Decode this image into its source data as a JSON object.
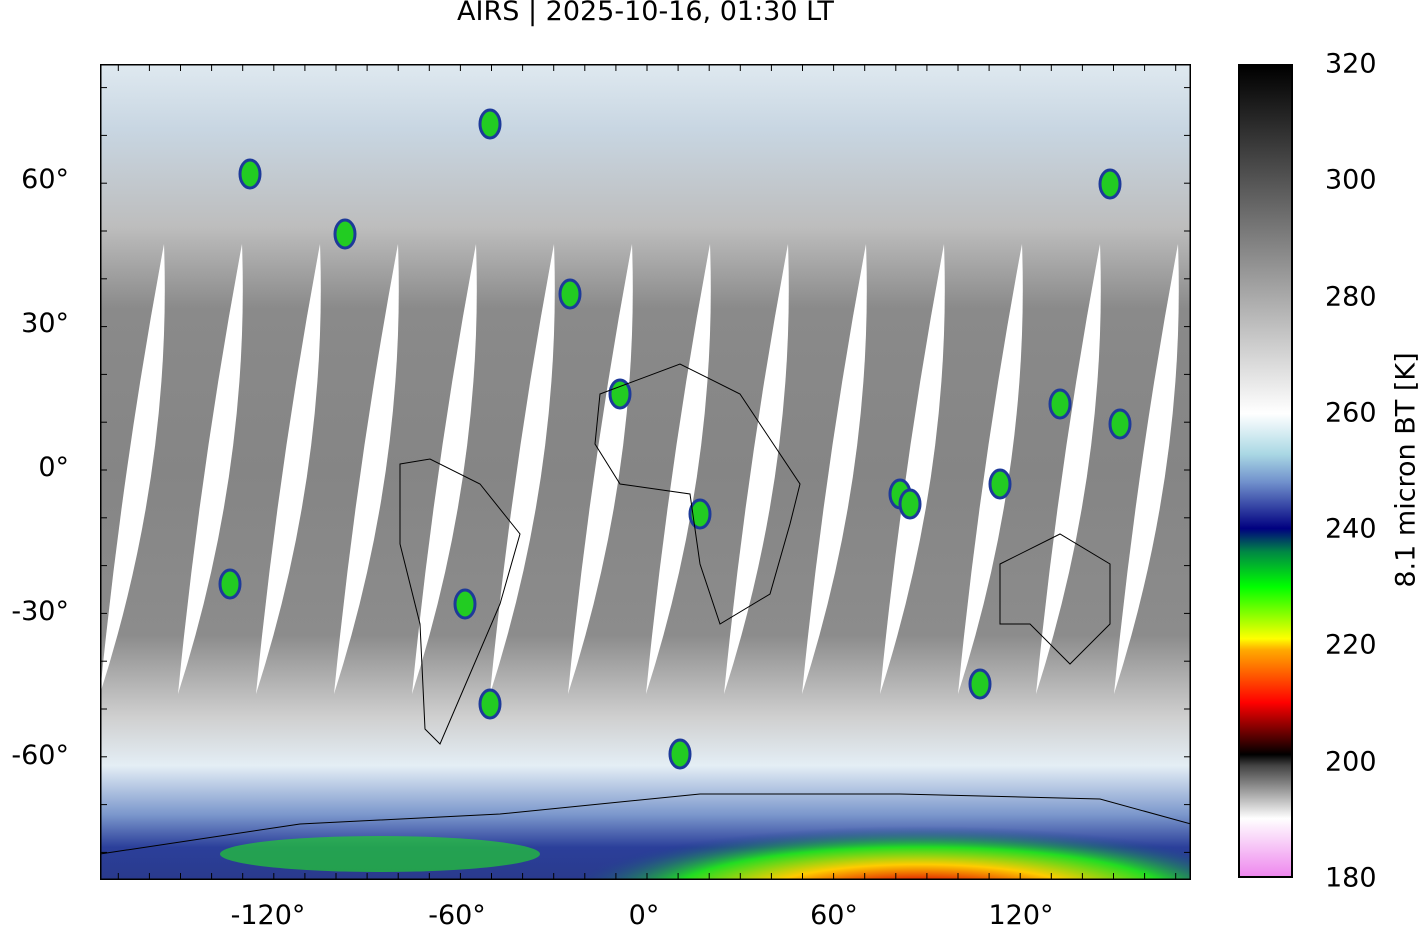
{
  "title": "AIRS | 2025-10-16, 01:30 LT",
  "map": {
    "projection": "equirectangular",
    "variable": "8.1 micron brightness temperature",
    "lat_ticks": [
      "60°",
      "30°",
      "0°",
      "-30°",
      "-60°"
    ],
    "lon_ticks": [
      "-120°",
      "-60°",
      "0°",
      "60°",
      "120°"
    ],
    "no_data_color": "#ffffff",
    "coastlines": true
  },
  "colorbar": {
    "label": "8.1 micron BT [K]",
    "ticks": [
      "320",
      "300",
      "280",
      "260",
      "240",
      "220",
      "200",
      "180"
    ],
    "range": [
      180,
      320
    ],
    "stops": [
      {
        "value": 180,
        "color": "#ee88ee"
      },
      {
        "value": 190,
        "color": "#ffffff"
      },
      {
        "value": 199,
        "color": "#444444"
      },
      {
        "value": 201,
        "color": "#000000"
      },
      {
        "value": 210,
        "color": "#ff0000"
      },
      {
        "value": 219,
        "color": "#ffaa00"
      },
      {
        "value": 221,
        "color": "#ffff00"
      },
      {
        "value": 230,
        "color": "#00ff00"
      },
      {
        "value": 236,
        "color": "#008844"
      },
      {
        "value": 240,
        "color": "#000080"
      },
      {
        "value": 248,
        "color": "#7090cc"
      },
      {
        "value": 253,
        "color": "#aad8e4"
      },
      {
        "value": 260,
        "color": "#ffffff"
      },
      {
        "value": 280,
        "color": "#aaaaaa"
      },
      {
        "value": 300,
        "color": "#555555"
      },
      {
        "value": 320,
        "color": "#000000"
      }
    ]
  }
}
